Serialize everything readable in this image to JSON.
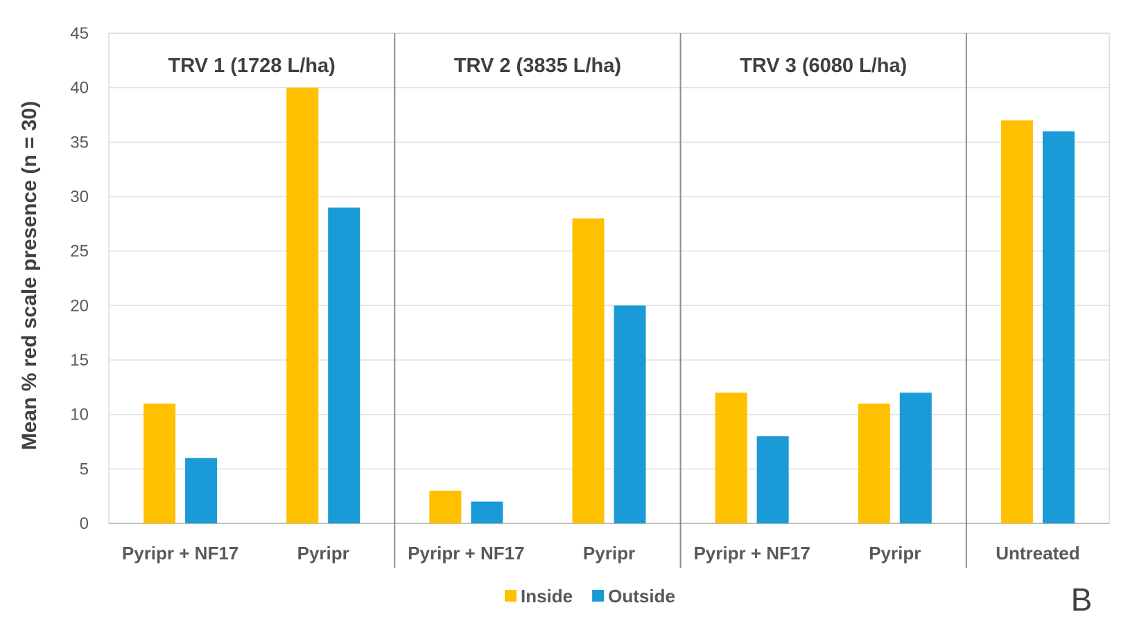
{
  "chart_data": {
    "type": "bar",
    "ylabel": "Mean % red scale presence (n = 30)",
    "ylim": [
      0,
      45
    ],
    "yticks": [
      0,
      5,
      10,
      15,
      20,
      25,
      30,
      35,
      40,
      45
    ],
    "grid": true,
    "legend_position": "bottom-center",
    "panel_letter": "B",
    "groups": [
      {
        "title": "TRV 1 (1728 L/ha)",
        "categories": [
          "Pyripr + NF17",
          "Pyripr"
        ]
      },
      {
        "title": "TRV 2 (3835 L/ha)",
        "categories": [
          "Pyripr + NF17",
          "Pyripr"
        ]
      },
      {
        "title": "TRV 3 (6080 L/ha)",
        "categories": [
          "Pyripr + NF17",
          "Pyripr"
        ]
      },
      {
        "title": "",
        "categories": [
          "Untreated"
        ]
      }
    ],
    "categories": [
      "Pyripr + NF17",
      "Pyripr",
      "Pyripr + NF17",
      "Pyripr",
      "Pyripr + NF17",
      "Pyripr",
      "Untreated"
    ],
    "series": [
      {
        "name": "Inside",
        "color": "#FFC000",
        "values": [
          11,
          40,
          3,
          28,
          12,
          11,
          37
        ]
      },
      {
        "name": "Outside",
        "color": "#1A9AD6",
        "values": [
          6,
          29,
          2,
          20,
          8,
          12,
          36
        ]
      }
    ]
  }
}
